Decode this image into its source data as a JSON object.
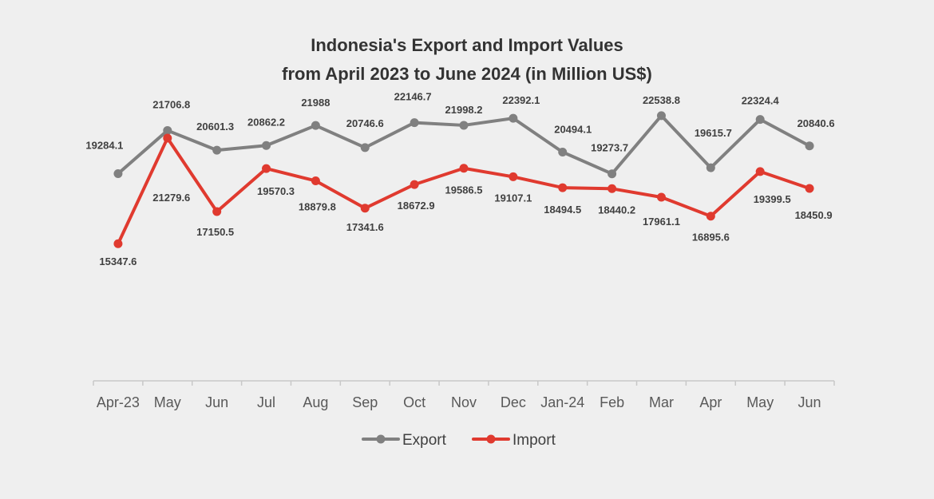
{
  "chart_data": {
    "type": "line",
    "title": [
      "Indonesia's Export and Import Values",
      "from April 2023 to June 2024 (in Million US$)"
    ],
    "xlabel": "",
    "ylabel": "",
    "categories": [
      "Apr-23",
      "May",
      "Jun",
      "Jul",
      "Aug",
      "Sep",
      "Oct",
      "Nov",
      "Dec",
      "Jan-24",
      "Feb",
      "Mar",
      "Apr",
      "May",
      "Jun"
    ],
    "ylim": [
      13000,
      25000
    ],
    "grid": false,
    "legend_position": "bottom",
    "series": [
      {
        "name": "Export",
        "color": "#808080",
        "values": [
          19284.1,
          21706.8,
          20601.3,
          20862.2,
          21988,
          20746.6,
          22146.7,
          21998.2,
          22392.1,
          20494.1,
          19273.7,
          22538.8,
          19615.7,
          22324.4,
          20840.6
        ],
        "labels": [
          "19284.1",
          "21706.8",
          "20601.3",
          "20862.2",
          "21988",
          "20746.6",
          "22146.7",
          "21998.2",
          "22392.1",
          "20494.1",
          "19273.7",
          "22538.8",
          "19615.7",
          "22324.4",
          "20840.6"
        ]
      },
      {
        "name": "Import",
        "color": "#e03a2f",
        "values": [
          15347.6,
          21279.6,
          17150.5,
          19570.3,
          18879.8,
          17341.6,
          18672.9,
          19586.5,
          19107.1,
          18494.5,
          18440.2,
          17961.1,
          16895.6,
          19399.5,
          18450.9
        ],
        "labels": [
          "15347.6",
          "21279.6",
          "17150.5",
          "19570.3",
          "18879.8",
          "17341.6",
          "18672.9",
          "19586.5",
          "19107.1",
          "18494.5",
          "18440.2",
          "17961.1",
          "16895.6",
          "19399.5",
          "18450.9"
        ]
      }
    ]
  }
}
